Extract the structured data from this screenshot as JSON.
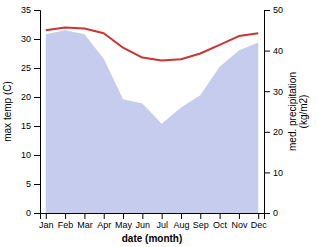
{
  "chart_data": {
    "type": "line",
    "categories": [
      "Jan",
      "Feb",
      "Mar",
      "Apr",
      "May",
      "Jun",
      "Jul",
      "Aug",
      "Sep",
      "Oct",
      "Nov",
      "Dec"
    ],
    "xlabel": "date (month)",
    "ylabel": "max temp (C)",
    "y2label": "med. precipitation\n(kg/m2)",
    "ylim": [
      0,
      35
    ],
    "yticks": [
      0,
      5,
      10,
      15,
      20,
      25,
      30,
      35
    ],
    "y2lim": [
      0,
      50
    ],
    "y2ticks": [
      0,
      10,
      20,
      30,
      40,
      50
    ],
    "series": [
      {
        "type": "area",
        "axis": "y2",
        "color": "#c5ccee",
        "values": [
          44.0,
          45.0,
          44.0,
          38.0,
          28.0,
          27.0,
          22.0,
          26.0,
          29.0,
          36.0,
          40.0,
          42.0
        ]
      },
      {
        "type": "line",
        "color": "#cc3333",
        "values": [
          31.5,
          32.0,
          31.8,
          31.0,
          28.5,
          26.8,
          26.3,
          26.5,
          27.5,
          29.0,
          30.5,
          31.0
        ]
      }
    ]
  }
}
